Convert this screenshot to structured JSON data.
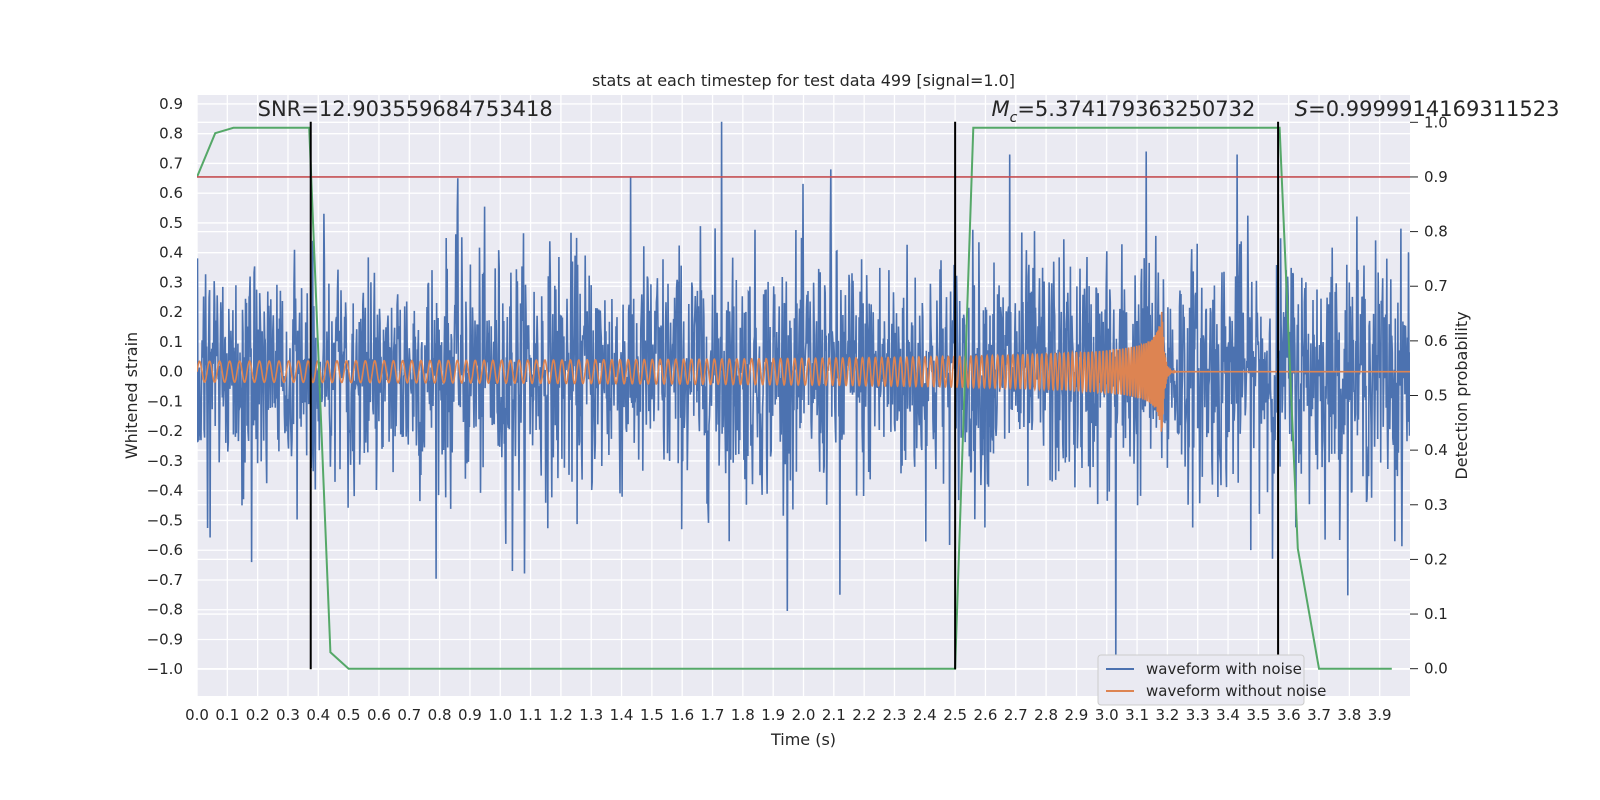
{
  "chart_data": {
    "type": "line",
    "title": "stats at each timestep for test data 499 [signal=1.0]",
    "xlabel": "Time (s)",
    "ylabel_left": "Whitened strain",
    "ylabel_right": "Detection probability",
    "xlim": [
      0.0,
      4.0
    ],
    "ylim_left": [
      -1.09,
      0.93
    ],
    "ylim_right": [
      -0.05,
      1.05
    ],
    "x_ticks": [
      0.0,
      0.1,
      0.2,
      0.3,
      0.4,
      0.5,
      0.6,
      0.7,
      0.8,
      0.9,
      1.0,
      1.1,
      1.2,
      1.3,
      1.4,
      1.5,
      1.6,
      1.7,
      1.8,
      1.9,
      2.0,
      2.1,
      2.2,
      2.3,
      2.4,
      2.5,
      2.6,
      2.7,
      2.8,
      2.9,
      3.0,
      3.1,
      3.2,
      3.3,
      3.4,
      3.5,
      3.6,
      3.7,
      3.8,
      3.9
    ],
    "x_tick_labels": [
      "0.0",
      "0.1",
      "0.2",
      "0.3",
      "0.4",
      "0.5",
      "0.6",
      "0.7",
      "0.8",
      "0.9",
      "1.0",
      "1.1",
      "1.2",
      "1.3",
      "1.4",
      "1.5",
      "1.6",
      "1.7",
      "1.8",
      "1.9",
      "2.0",
      "2.1",
      "2.2",
      "2.3",
      "2.4",
      "2.5",
      "2.6",
      "2.7",
      "2.8",
      "2.9",
      "3.0",
      "3.1",
      "3.2",
      "3.3",
      "3.4",
      "3.5",
      "3.6",
      "3.7",
      "3.8",
      "3.9"
    ],
    "y_left_ticks": [
      0.9,
      0.8,
      0.7,
      0.6,
      0.5,
      0.4,
      0.3,
      0.2,
      0.1,
      0.0,
      -0.1,
      -0.2,
      -0.3,
      -0.4,
      -0.5,
      -0.6,
      -0.7,
      -0.8,
      -0.9,
      -1.0
    ],
    "y_left_tick_labels": [
      "0.9",
      "0.8",
      "0.7",
      "0.6",
      "0.5",
      "0.4",
      "0.3",
      "0.2",
      "0.1",
      "0.0",
      "−0.1",
      "−0.2",
      "−0.3",
      "−0.4",
      "−0.5",
      "−0.6",
      "−0.7",
      "−0.8",
      "−0.9",
      "−1.0"
    ],
    "y_right_ticks": [
      1.0,
      0.9,
      0.8,
      0.7,
      0.6,
      0.5,
      0.4,
      0.3,
      0.2,
      0.1,
      0.0
    ],
    "y_right_tick_labels": [
      "1.0",
      "0.9",
      "0.8",
      "0.7",
      "0.6",
      "0.5",
      "0.4",
      "0.3",
      "0.2",
      "0.1",
      "0.0"
    ],
    "grid": true,
    "legend_position": "lower-right",
    "series": [
      {
        "name": "waveform with noise",
        "axis": "left",
        "color": "#4c72b0",
        "description_kind": "noise",
        "noise_amplitude": 0.2,
        "spikes": [
          {
            "x": 1.73,
            "y": 0.84
          },
          {
            "x": 2.09,
            "y": 0.68
          },
          {
            "x": 0.86,
            "y": 0.65
          },
          {
            "x": 3.13,
            "y": 0.74
          },
          {
            "x": 2.68,
            "y": 0.73
          },
          {
            "x": 3.43,
            "y": 0.73
          },
          {
            "x": 3.03,
            "y": -1.01
          },
          {
            "x": 2.12,
            "y": -0.75
          },
          {
            "x": 0.18,
            "y": -0.64
          },
          {
            "x": 1.04,
            "y": -0.67
          },
          {
            "x": 3.95,
            "y": -0.57
          }
        ]
      },
      {
        "name": "waveform without noise",
        "axis": "left",
        "color": "#dd8452",
        "description_kind": "chirp",
        "amplitude_start": 0.035,
        "amplitude_peak": 0.28,
        "merger_time": 3.18,
        "freq_start_hz": 30,
        "freq_end_hz": 400
      },
      {
        "name": "",
        "axis": "right",
        "color": "#55a868",
        "x": [
          0.0,
          0.06,
          0.12,
          0.2,
          0.3,
          0.37,
          0.44,
          0.5,
          2.0,
          2.5,
          2.56,
          3.0,
          3.55,
          3.57,
          3.63,
          3.7,
          3.9,
          3.94
        ],
        "y": [
          0.9,
          0.98,
          0.99,
          0.99,
          0.99,
          0.99,
          0.03,
          0.0,
          0.0,
          0.0,
          0.99,
          0.99,
          0.99,
          0.99,
          0.22,
          0.0,
          0.0,
          0.0
        ]
      },
      {
        "name": "",
        "axis": "right",
        "kind": "hline",
        "color": "#c44e52",
        "y": 0.9
      }
    ],
    "vlines": [
      {
        "x": 0.375,
        "color": "#000000",
        "y_left_range": [
          -1.0,
          0.84
        ]
      },
      {
        "x": 2.5,
        "color": "#000000",
        "y_left_range": [
          -1.0,
          0.84
        ]
      },
      {
        "x": 3.565,
        "color": "#000000",
        "y_left_range": [
          -1.0,
          0.84
        ]
      }
    ],
    "annotations": [
      {
        "name": "snr",
        "prefix": "",
        "text": "SNR=12.903559684753418",
        "x": 0.2,
        "y_left": 0.86
      },
      {
        "name": "mc",
        "prefix": "M",
        "subscript": "c",
        "text": "=5.374179363250732",
        "x": 2.62,
        "y_left": 0.86
      },
      {
        "name": "s",
        "prefix": "S",
        "text": "=0.9999914169311523",
        "x": 3.62,
        "y_left": 0.86
      }
    ]
  }
}
